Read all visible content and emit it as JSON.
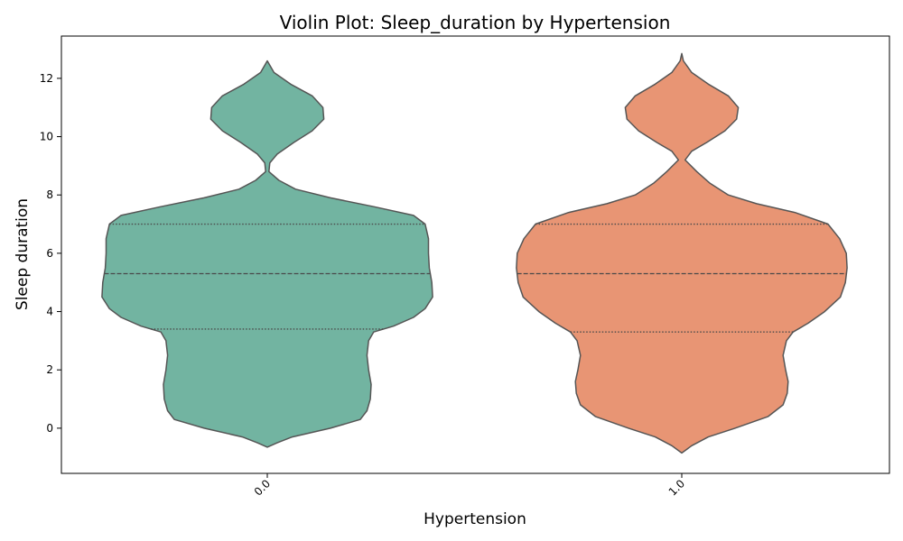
{
  "chart_data": {
    "type": "violin",
    "title": "Violin Plot: Sleep_duration by Hypertension",
    "xlabel": "Hypertension",
    "ylabel": "Sleep duration",
    "ylim": [
      -1.55,
      13.45
    ],
    "yticks": [
      0,
      2,
      4,
      6,
      8,
      10,
      12
    ],
    "categories": [
      "0.0",
      "1.0"
    ],
    "grid": false,
    "legend": "none",
    "series": [
      {
        "category": "0.0",
        "color": "#72b4a1",
        "quartiles": {
          "q1": 3.4,
          "median": 5.3,
          "q3": 7.0
        },
        "profile": [
          [
            -0.65,
            0.0
          ],
          [
            -0.5,
            0.06
          ],
          [
            -0.3,
            0.15
          ],
          [
            0.0,
            0.38
          ],
          [
            0.3,
            0.56
          ],
          [
            0.6,
            0.6
          ],
          [
            1.0,
            0.62
          ],
          [
            1.5,
            0.625
          ],
          [
            2.0,
            0.61
          ],
          [
            2.5,
            0.6
          ],
          [
            3.0,
            0.61
          ],
          [
            3.3,
            0.64
          ],
          [
            3.5,
            0.76
          ],
          [
            3.8,
            0.88
          ],
          [
            4.1,
            0.95
          ],
          [
            4.5,
            0.995
          ],
          [
            5.0,
            0.99
          ],
          [
            5.5,
            0.975
          ],
          [
            6.0,
            0.97
          ],
          [
            6.5,
            0.97
          ],
          [
            7.0,
            0.95
          ],
          [
            7.3,
            0.88
          ],
          [
            7.6,
            0.64
          ],
          [
            7.9,
            0.38
          ],
          [
            8.2,
            0.17
          ],
          [
            8.5,
            0.07
          ],
          [
            8.8,
            0.01
          ],
          [
            9.1,
            0.015
          ],
          [
            9.4,
            0.06
          ],
          [
            9.8,
            0.16
          ],
          [
            10.2,
            0.27
          ],
          [
            10.6,
            0.34
          ],
          [
            11.0,
            0.335
          ],
          [
            11.4,
            0.27
          ],
          [
            11.8,
            0.14
          ],
          [
            12.2,
            0.04
          ],
          [
            12.6,
            0.0
          ]
        ]
      },
      {
        "category": "1.0",
        "color": "#e89574",
        "quartiles": {
          "q1": 3.3,
          "median": 5.3,
          "q3": 7.0
        },
        "profile": [
          [
            -0.85,
            0.0
          ],
          [
            -0.6,
            0.06
          ],
          [
            -0.3,
            0.16
          ],
          [
            0.0,
            0.32
          ],
          [
            0.4,
            0.52
          ],
          [
            0.8,
            0.61
          ],
          [
            1.2,
            0.635
          ],
          [
            1.6,
            0.64
          ],
          [
            2.0,
            0.625
          ],
          [
            2.5,
            0.61
          ],
          [
            3.0,
            0.63
          ],
          [
            3.3,
            0.67
          ],
          [
            3.6,
            0.76
          ],
          [
            4.0,
            0.86
          ],
          [
            4.5,
            0.955
          ],
          [
            5.0,
            0.985
          ],
          [
            5.5,
            0.995
          ],
          [
            6.0,
            0.99
          ],
          [
            6.5,
            0.95
          ],
          [
            7.0,
            0.88
          ],
          [
            7.4,
            0.68
          ],
          [
            7.7,
            0.45
          ],
          [
            8.0,
            0.28
          ],
          [
            8.4,
            0.17
          ],
          [
            8.8,
            0.09
          ],
          [
            9.2,
            0.02
          ],
          [
            9.5,
            0.06
          ],
          [
            9.8,
            0.15
          ],
          [
            10.2,
            0.26
          ],
          [
            10.6,
            0.33
          ],
          [
            11.0,
            0.34
          ],
          [
            11.4,
            0.28
          ],
          [
            11.8,
            0.16
          ],
          [
            12.2,
            0.06
          ],
          [
            12.6,
            0.01
          ],
          [
            12.85,
            0.0
          ]
        ]
      }
    ]
  }
}
